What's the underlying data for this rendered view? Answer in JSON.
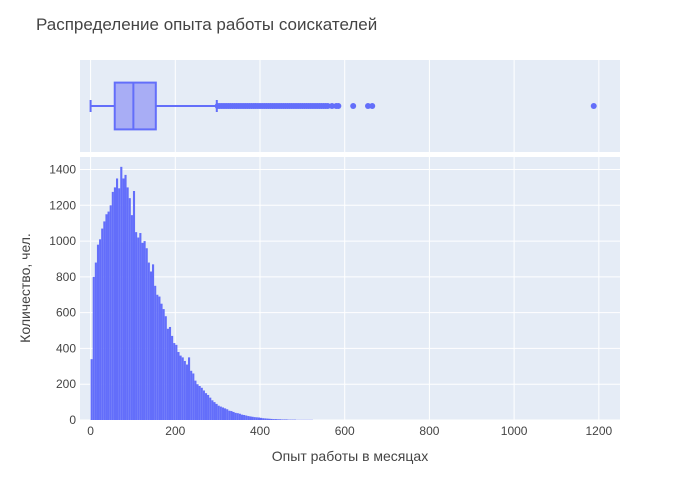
{
  "chart_data": {
    "type": "histogram",
    "title": "Распределение опыта работы соискателей",
    "xlabel": "Опыт работы в месяцах",
    "ylabel": "Количество, чел.",
    "xlim": [
      -25,
      1250
    ],
    "ylim": [
      0,
      1470
    ],
    "x_ticks": [
      0,
      200,
      400,
      600,
      800,
      1000,
      1200
    ],
    "y_ticks": [
      0,
      200,
      400,
      600,
      800,
      1000,
      1200,
      1400
    ],
    "bin_width": 5,
    "bins_start": 0,
    "counts": [
      340,
      800,
      880,
      980,
      1010,
      1070,
      1110,
      1150,
      1165,
      1200,
      1275,
      1300,
      1350,
      1295,
      1415,
      1350,
      1370,
      1300,
      1240,
      1145,
      1280,
      1050,
      1020,
      1045,
      990,
      1000,
      960,
      880,
      830,
      870,
      750,
      700,
      690,
      650,
      620,
      580,
      510,
      520,
      470,
      430,
      420,
      380,
      360,
      350,
      330,
      310,
      350,
      275,
      260,
      220,
      200,
      190,
      180,
      165,
      150,
      140,
      125,
      110,
      100,
      90,
      80,
      75,
      70,
      65,
      60,
      52,
      50,
      45,
      40,
      38,
      35,
      30,
      28,
      25,
      22,
      20,
      18,
      16,
      15,
      14,
      12,
      10,
      9,
      8,
      7,
      6,
      5,
      5,
      4,
      4,
      3,
      3,
      3,
      2,
      2,
      2,
      2,
      1,
      1,
      1,
      1,
      1,
      1,
      1,
      1
    ],
    "box": {
      "min": 0,
      "q1": 57,
      "median": 101,
      "q3": 154,
      "upper_fence": 298,
      "outliers": [
        300,
        305,
        310,
        315,
        320,
        325,
        330,
        335,
        340,
        345,
        350,
        355,
        360,
        365,
        370,
        375,
        380,
        385,
        390,
        395,
        400,
        405,
        410,
        415,
        420,
        425,
        430,
        435,
        440,
        445,
        450,
        455,
        460,
        465,
        470,
        475,
        480,
        485,
        490,
        495,
        500,
        505,
        510,
        515,
        520,
        525,
        530,
        535,
        540,
        545,
        550,
        555,
        560,
        570,
        580,
        585,
        620,
        655,
        665,
        1188
      ]
    },
    "colors": {
      "bar": "#636efa",
      "box_fill": "#a8adf5",
      "plot_bg": "#e5ecf6",
      "grid": "#ffffff"
    }
  }
}
